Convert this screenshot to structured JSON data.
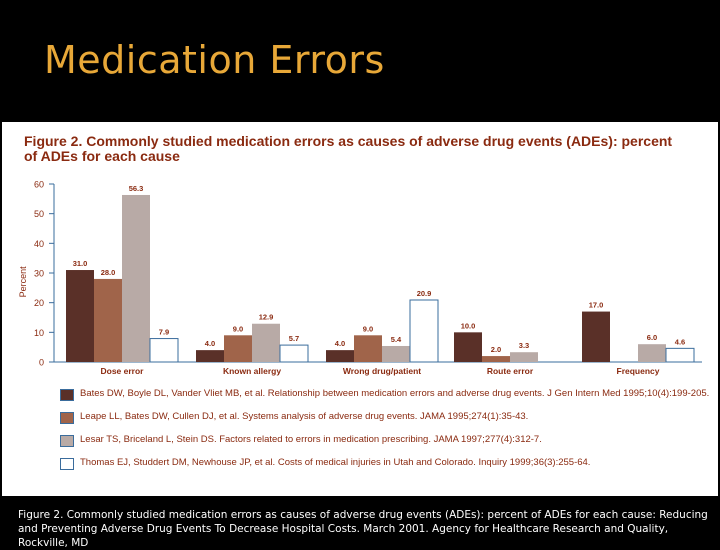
{
  "slide": {
    "title": "Medication Errors",
    "caption": "Figure 2. Commonly studied medication errors as causes of adverse drug events (ADEs): percent of ADEs for each cause: Reducing and Preventing Adverse Drug Events To Decrease Hospital Costs. March 2001. Agency for Healthcare Research and Quality, Rockville, MD"
  },
  "chart_data": {
    "type": "bar",
    "title": "Figure 2. Commonly studied medication errors as causes of adverse drug events (ADEs): percent of ADEs for each cause",
    "ylabel": "Percent",
    "xlabel": "",
    "ylim": [
      0,
      60
    ],
    "yticks": [
      0,
      10,
      20,
      30,
      40,
      50,
      60
    ],
    "categories": [
      "Dose error",
      "Known allergy",
      "Wrong drug/patient",
      "Route error",
      "Frequency"
    ],
    "series": [
      {
        "name": "Bates DW, Boyle DL, Vander Vliet MB, et al. Relationship between medication errors and adverse drug events. J Gen Intern Med 1995;10(4):199-205.",
        "color": "#5a3028",
        "values": [
          31.0,
          4.0,
          4.0,
          10.0,
          17.0
        ]
      },
      {
        "name": "Leape LL, Bates DW, Cullen DJ, et al. Systems analysis of adverse drug events. JAMA 1995;274(1):35-43.",
        "color": "#a0644a",
        "values": [
          28.0,
          9.0,
          9.0,
          2.0,
          null
        ]
      },
      {
        "name": "Lesar TS, Briceland L, Stein DS. Factors related to errors in medication prescribing. JAMA 1997;277(4):312-7.",
        "color": "#b8aaa6",
        "values": [
          56.3,
          12.9,
          5.4,
          3.3,
          6.0
        ]
      },
      {
        "name": "Thomas EJ, Studdert DM, Newhouse JP, et al. Costs of medical injuries in Utah and Colorado. Inquiry 1999;36(3):255-64.",
        "color": "#ffffff",
        "values": [
          7.9,
          5.7,
          20.9,
          null,
          4.6
        ]
      }
    ],
    "data_labels": [
      [
        "31.0",
        "28.0",
        "56.3",
        "7.9"
      ],
      [
        "4.0",
        "9.0",
        "12.9",
        "5.7"
      ],
      [
        "4.0",
        "9.0",
        "5.4",
        "20.9"
      ],
      [
        "10.0",
        "2.0",
        "3.3",
        ""
      ],
      [
        "17.0",
        "",
        "6.0",
        "4.6"
      ]
    ],
    "grid": false,
    "legend_position": "bottom"
  }
}
